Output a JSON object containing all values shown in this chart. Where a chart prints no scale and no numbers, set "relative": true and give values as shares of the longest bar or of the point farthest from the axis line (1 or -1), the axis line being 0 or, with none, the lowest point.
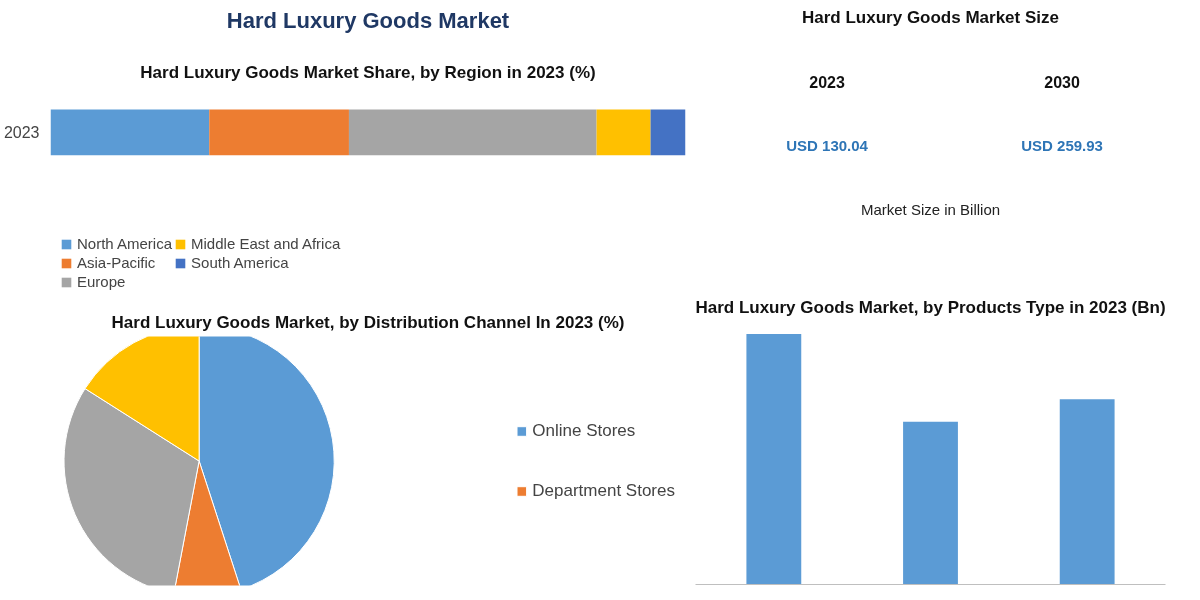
{
  "chart_data": [
    {
      "type": "other",
      "title": "Hard Luxury Goods Market"
    },
    {
      "type": "bar",
      "title": "Hard Luxury Goods Market Share, by Region in 2023 (%)",
      "orientation": "horizontal",
      "stacked": true,
      "relative": true,
      "categories": [
        "2023"
      ],
      "legend": "bottom",
      "series": [
        {
          "name": "North America",
          "color": "#5b9bd5",
          "values": [
            0.25
          ]
        },
        {
          "name": "Asia-Pacific",
          "color": "#ed7d31",
          "values": [
            0.22
          ]
        },
        {
          "name": "Europe",
          "color": "#a5a5a5",
          "values": [
            0.39
          ]
        },
        {
          "name": "Middle East and Africa",
          "color": "#ffc000",
          "values": [
            0.085
          ]
        },
        {
          "name": "South America",
          "color": "#4472c4",
          "values": [
            0.055
          ]
        }
      ]
    },
    {
      "type": "other",
      "title": "Hard Luxury Goods Market Size",
      "annotations": [
        "2023",
        "2030",
        "USD 130.04",
        "USD 259.93",
        "Market Size in Billion"
      ]
    },
    {
      "type": "pie",
      "title": "Hard Luxury Goods Market, by Distribution Channel In 2023 (%)",
      "categories": [
        "Online Stores",
        "Department Stores",
        null,
        null
      ],
      "values": [
        45,
        8,
        31,
        16
      ],
      "colors": [
        "#5b9bd5",
        "#ed7d31",
        "#a5a5a5",
        "#ffc000"
      ],
      "legend": "right"
    },
    {
      "type": "bar",
      "title": "Hard Luxury Goods Market, by Products Type in 2023 (Bn)",
      "relative": true,
      "categories": [
        null,
        null,
        null
      ],
      "values": [
        1,
        0.65,
        0.74
      ],
      "color": "#5b9bd5"
    }
  ]
}
